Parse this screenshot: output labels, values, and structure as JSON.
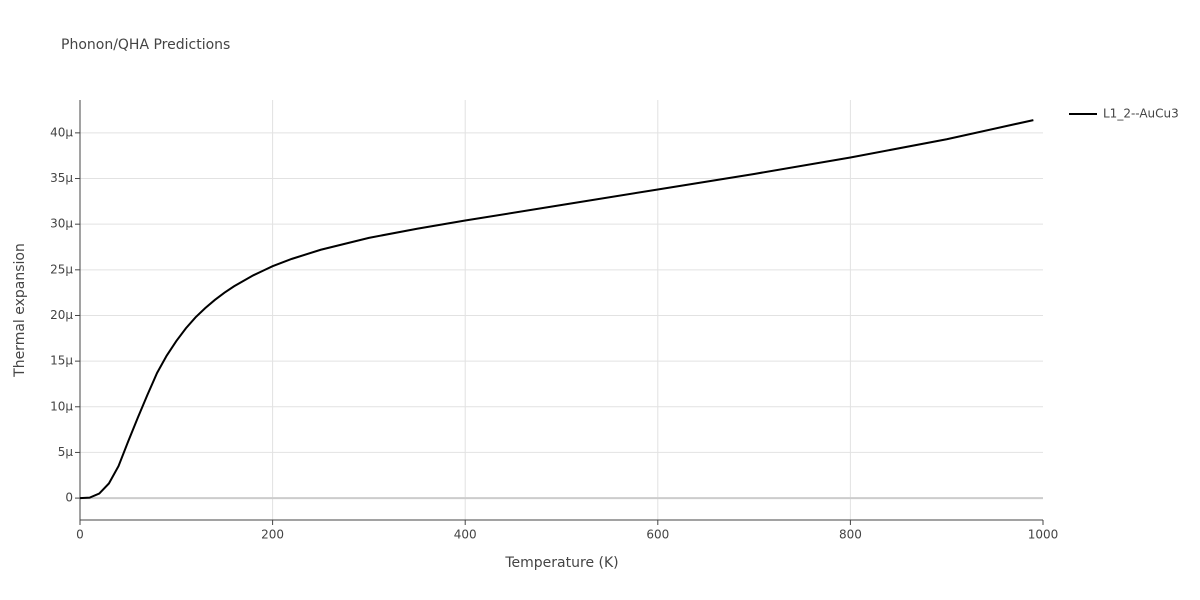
{
  "chart_data": {
    "type": "line",
    "title": "Phonon/QHA Predictions",
    "x_label": "Temperature (K)",
    "y_label": "Thermal expansion",
    "x": [
      0,
      10,
      20,
      30,
      40,
      50,
      60,
      70,
      80,
      90,
      100,
      110,
      120,
      130,
      140,
      150,
      160,
      170,
      180,
      190,
      200,
      220,
      250,
      300,
      350,
      400,
      500,
      600,
      700,
      800,
      900,
      990
    ],
    "series": [
      {
        "name": "L1_2--AuCu3",
        "color": "#000000",
        "values": [
          0,
          5e-08,
          5e-07,
          1.6e-06,
          3.5e-06,
          6.2e-06,
          8.8e-06,
          1.13e-05,
          1.37e-05,
          1.56e-05,
          1.72e-05,
          1.86e-05,
          1.98e-05,
          2.08e-05,
          2.17e-05,
          2.25e-05,
          2.32e-05,
          2.38e-05,
          2.44e-05,
          2.49e-05,
          2.54e-05,
          2.62e-05,
          2.72e-05,
          2.85e-05,
          2.95e-05,
          3.04e-05,
          3.21e-05,
          3.38e-05,
          3.55e-05,
          3.73e-05,
          3.93e-05,
          4.14e-05
        ]
      }
    ],
    "xlim": [
      0,
      1000
    ],
    "xticks": [
      0,
      200,
      400,
      600,
      800,
      1000
    ],
    "ylim": [
      -2.4e-06,
      4.36e-05
    ],
    "yticks": [
      0,
      {
        "value": 5e-06,
        "label": "5μ"
      },
      {
        "value": 1e-05,
        "label": "10μ"
      },
      {
        "value": 1.5e-05,
        "label": "15μ"
      },
      {
        "value": 2e-05,
        "label": "20μ"
      },
      {
        "value": 2.5e-05,
        "label": "25μ"
      },
      {
        "value": 3e-05,
        "label": "30μ"
      },
      {
        "value": 3.5e-05,
        "label": "35μ"
      },
      {
        "value": 4e-05,
        "label": "40μ"
      }
    ],
    "grid": true,
    "legend": "right"
  }
}
